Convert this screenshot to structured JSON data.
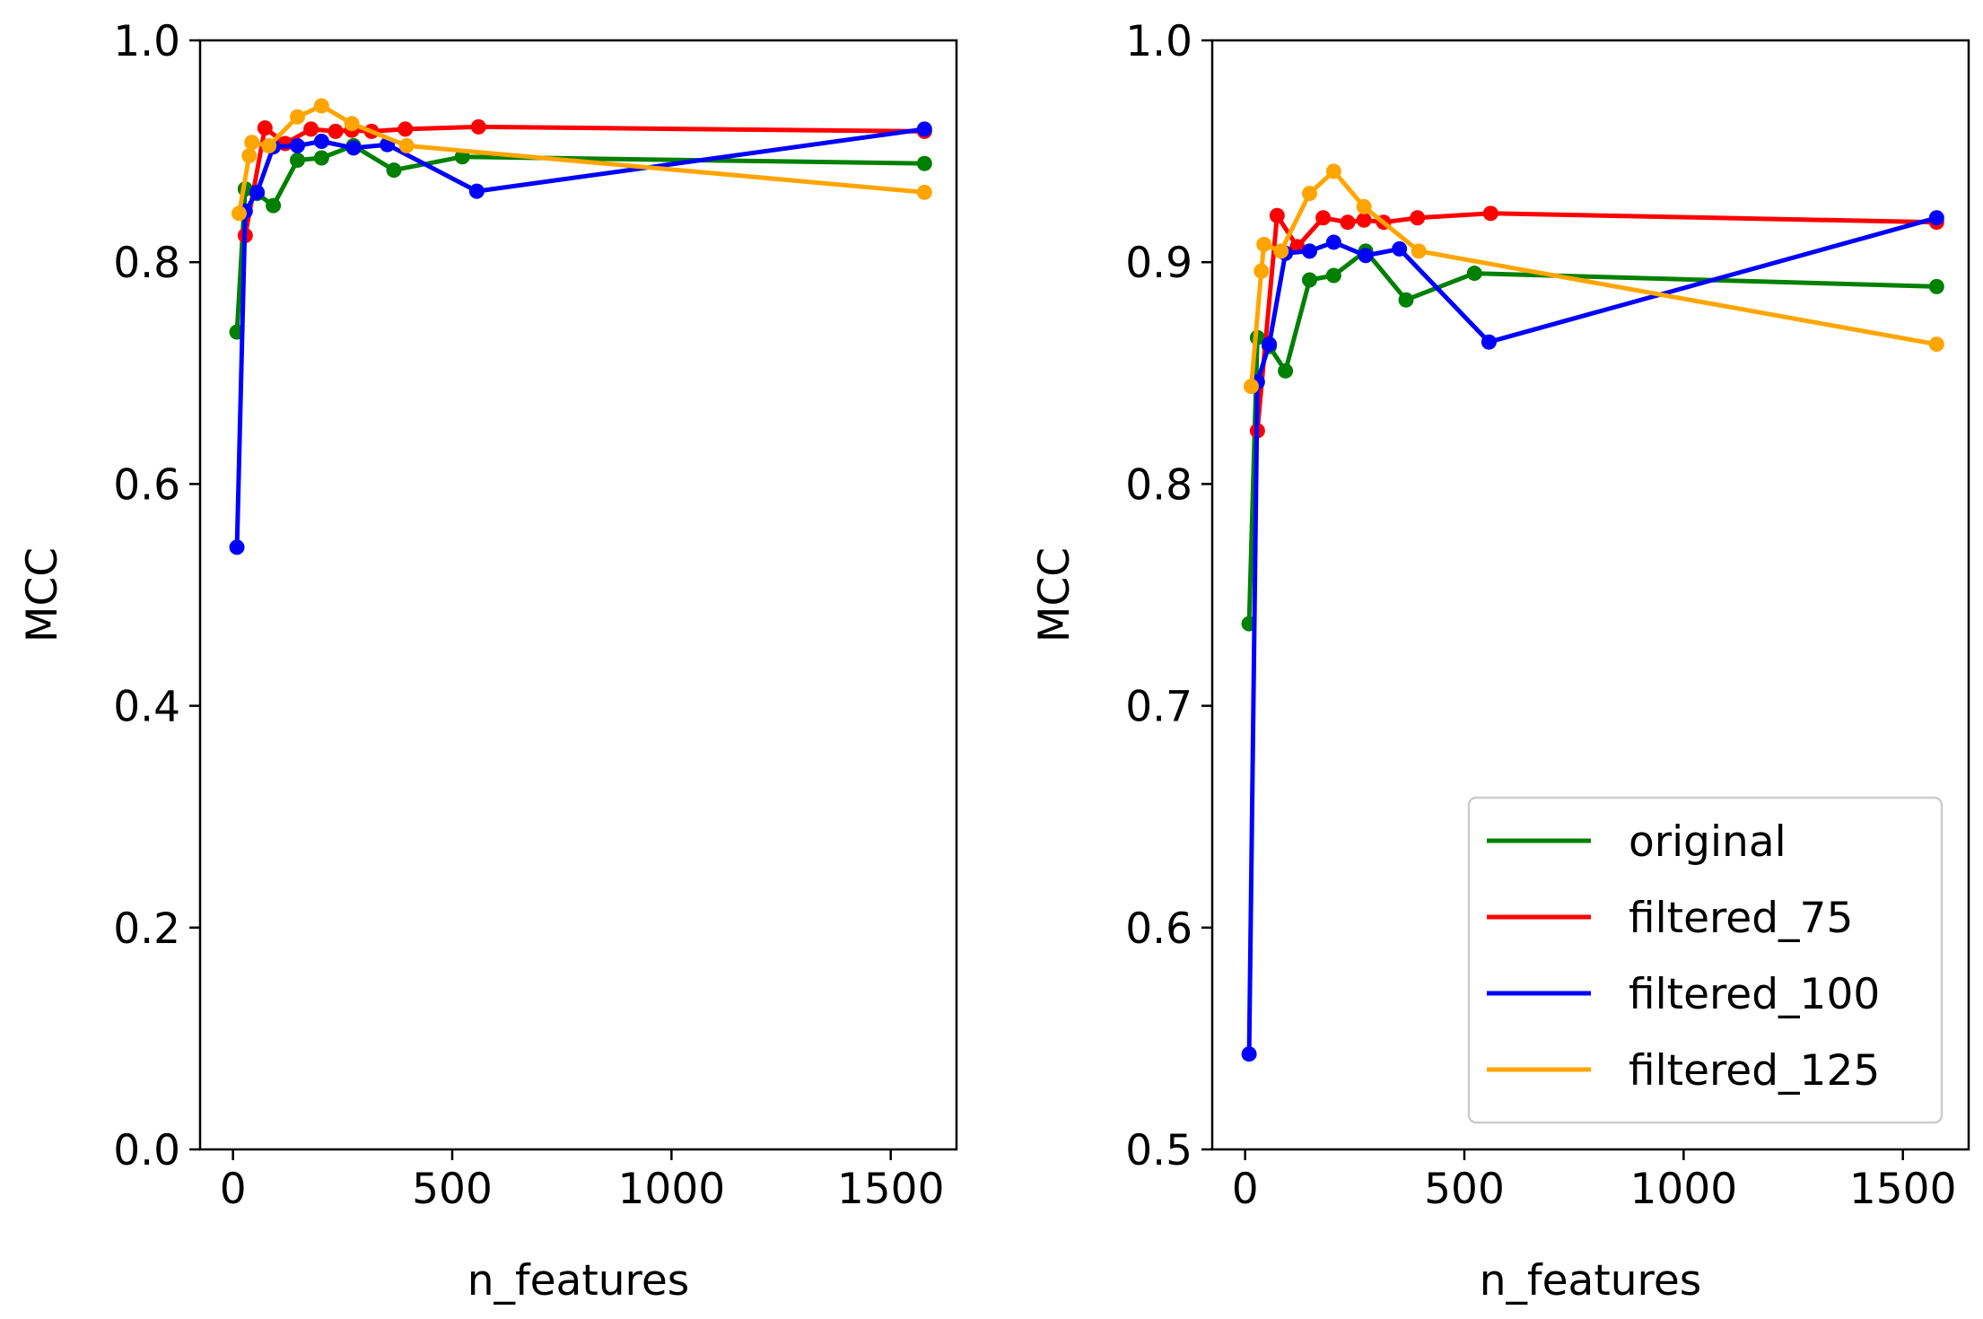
{
  "chart_data": [
    {
      "type": "line",
      "title": "",
      "xlabel": "n_features",
      "ylabel": "MCC",
      "xlim": [
        -75,
        1650
      ],
      "ylim": [
        0.0,
        1.0
      ],
      "xticks": [
        0,
        500,
        1000,
        1500
      ],
      "yticks": [
        0.0,
        0.2,
        0.4,
        0.6,
        0.8,
        1.0
      ],
      "ytick_labels": [
        "0.0",
        "0.2",
        "0.4",
        "0.6",
        "0.8",
        "1.0"
      ],
      "grid": false,
      "legend": "none",
      "series": [
        {
          "name": "original",
          "color": "#008000",
          "x": [
            9,
            28,
            55,
            92,
            147,
            202,
            275,
            367,
            523,
            1577
          ],
          "y": [
            0.737,
            0.866,
            0.862,
            0.851,
            0.892,
            0.894,
            0.905,
            0.883,
            0.895,
            0.889
          ]
        },
        {
          "name": "filtered_75",
          "color": "#ff0000",
          "x": [
            28,
            73,
            119,
            178,
            234,
            271,
            316,
            393,
            560,
            1577
          ],
          "y": [
            0.824,
            0.921,
            0.907,
            0.92,
            0.918,
            0.919,
            0.918,
            0.92,
            0.922,
            0.918
          ]
        },
        {
          "name": "filtered_100",
          "color": "#0000ff",
          "x": [
            9,
            28,
            55,
            92,
            147,
            202,
            275,
            352,
            556,
            1577
          ],
          "y": [
            0.543,
            0.846,
            0.863,
            0.904,
            0.905,
            0.909,
            0.903,
            0.906,
            0.864,
            0.92
          ]
        },
        {
          "name": "filtered_125",
          "color": "#ffa500",
          "x": [
            14,
            37,
            43,
            82,
            147,
            202,
            271,
            396,
            1577
          ],
          "y": [
            0.844,
            0.896,
            0.908,
            0.905,
            0.931,
            0.941,
            0.925,
            0.905,
            0.863
          ]
        }
      ]
    },
    {
      "type": "line",
      "title": "",
      "xlabel": "n_features",
      "ylabel": "MCC",
      "xlim": [
        -75,
        1650
      ],
      "ylim": [
        0.5,
        1.0
      ],
      "xticks": [
        0,
        500,
        1000,
        1500
      ],
      "yticks": [
        0.5,
        0.6,
        0.7,
        0.8,
        0.9,
        1.0
      ],
      "ytick_labels": [
        "0.5",
        "0.6",
        "0.7",
        "0.8",
        "0.9",
        "1.0"
      ],
      "grid": false,
      "legend": "bottom-right",
      "series": [
        {
          "name": "original",
          "color": "#008000",
          "x": [
            9,
            28,
            55,
            92,
            147,
            202,
            275,
            367,
            523,
            1577
          ],
          "y": [
            0.737,
            0.866,
            0.862,
            0.851,
            0.892,
            0.894,
            0.905,
            0.883,
            0.895,
            0.889
          ]
        },
        {
          "name": "filtered_75",
          "color": "#ff0000",
          "x": [
            28,
            73,
            119,
            178,
            234,
            271,
            316,
            393,
            560,
            1577
          ],
          "y": [
            0.824,
            0.921,
            0.907,
            0.92,
            0.918,
            0.919,
            0.918,
            0.92,
            0.922,
            0.918
          ]
        },
        {
          "name": "filtered_100",
          "color": "#0000ff",
          "x": [
            9,
            28,
            55,
            92,
            147,
            202,
            275,
            352,
            556,
            1577
          ],
          "y": [
            0.543,
            0.846,
            0.863,
            0.904,
            0.905,
            0.909,
            0.903,
            0.906,
            0.864,
            0.92
          ]
        },
        {
          "name": "filtered_125",
          "color": "#ffa500",
          "x": [
            14,
            37,
            43,
            82,
            147,
            202,
            271,
            396,
            1577
          ],
          "y": [
            0.844,
            0.896,
            0.908,
            0.905,
            0.931,
            0.941,
            0.925,
            0.905,
            0.863
          ]
        }
      ]
    }
  ]
}
